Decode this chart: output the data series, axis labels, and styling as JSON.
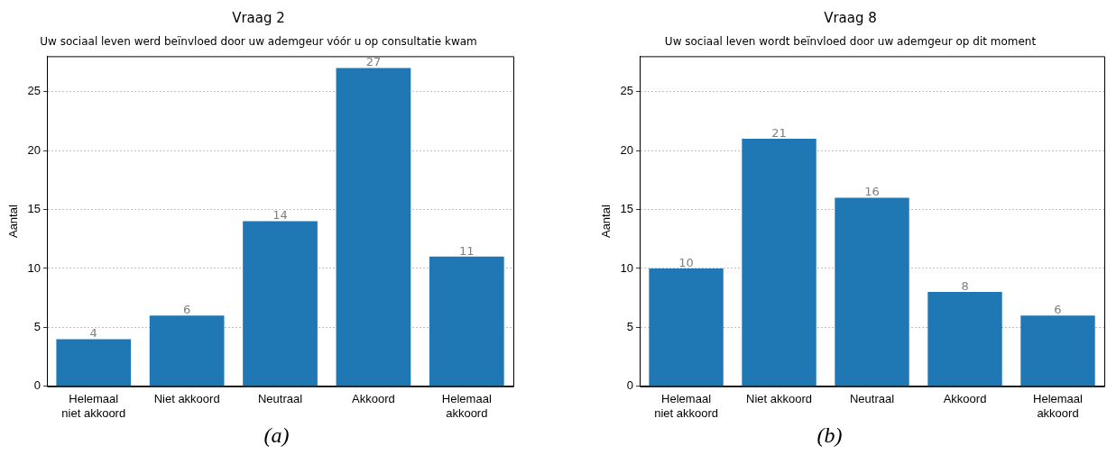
{
  "chart_data": [
    {
      "type": "bar",
      "title": "Vraag 2",
      "subtitle": "Uw sociaal leven werd beïnvloed door uw ademgeur vóór u op consultatie kwam",
      "ylabel": "Aantal",
      "categories": [
        "Helemaal niet akkoord",
        "Niet akkoord",
        "Neutraal",
        "Akkoord",
        "Helemaal akkoord"
      ],
      "values": [
        4,
        6,
        14,
        27,
        11
      ],
      "color": "#1f77b4",
      "ylim": [
        0,
        28
      ],
      "yticks": [
        0,
        5,
        10,
        15,
        20,
        25
      ],
      "grid": "y",
      "data_labels": true,
      "annotations": [
        "(a)"
      ]
    },
    {
      "type": "bar",
      "title": "Vraag 8",
      "subtitle": "Uw sociaal leven wordt beïnvloed door uw ademgeur op dit moment",
      "ylabel": "Aantal",
      "categories": [
        "Helemaal niet akkoord",
        "Niet akkoord",
        "Neutraal",
        "Akkoord",
        "Helemaal akkoord"
      ],
      "values": [
        10,
        21,
        16,
        8,
        6
      ],
      "color": "#1f77b4",
      "ylim": [
        0,
        28
      ],
      "yticks": [
        0,
        5,
        10,
        15,
        20,
        25
      ],
      "grid": "y",
      "data_labels": true,
      "annotations": [
        "(b)"
      ]
    }
  ]
}
